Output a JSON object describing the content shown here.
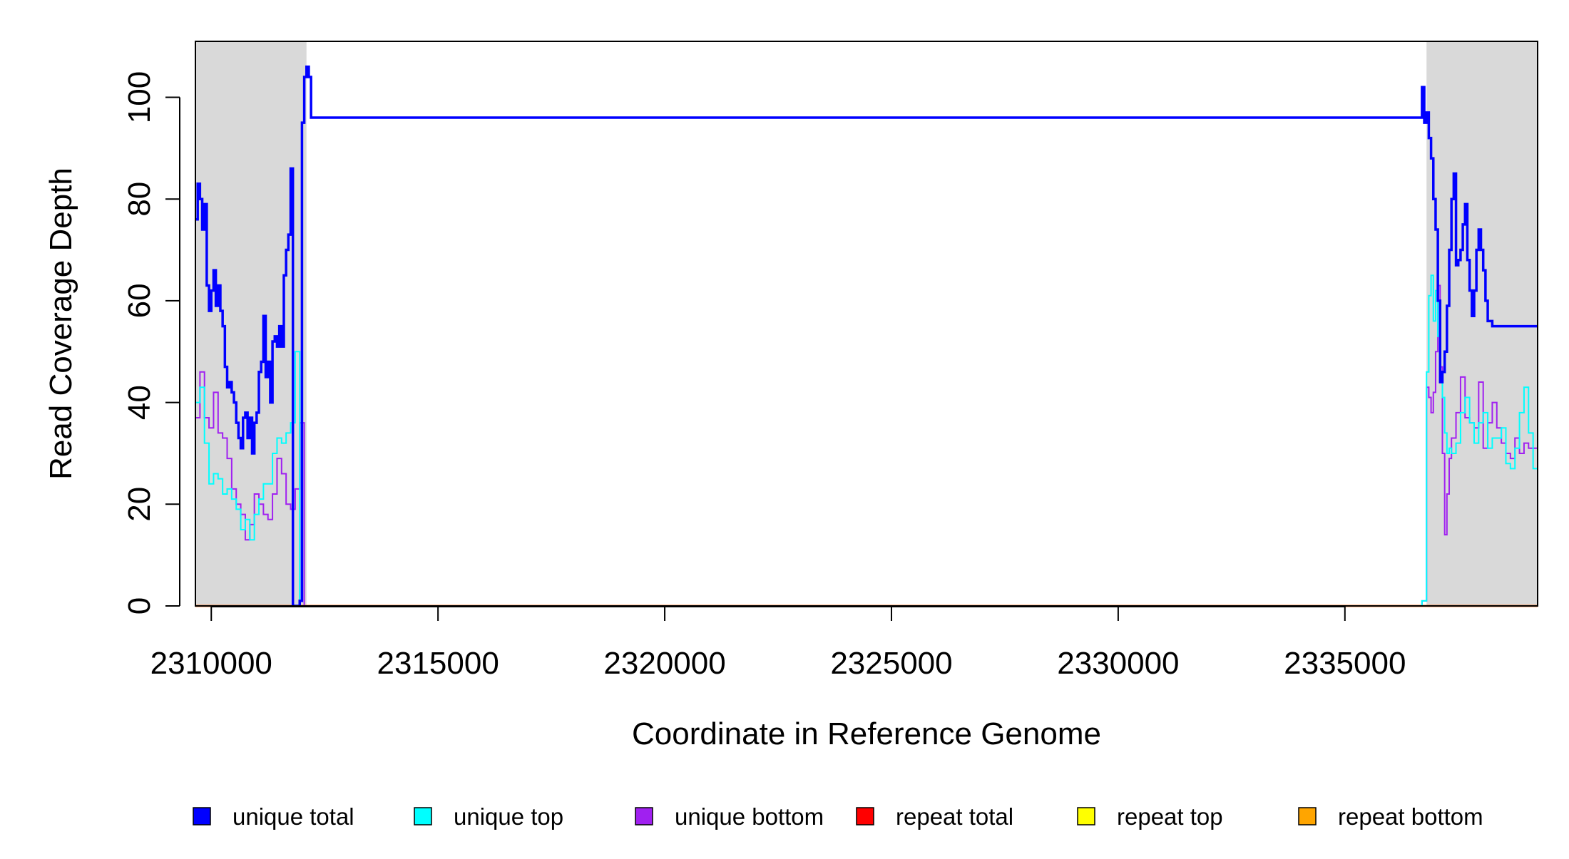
{
  "chart_data": {
    "type": "line",
    "xlabel": "Coordinate in Reference Genome",
    "ylabel": "Read Coverage Depth",
    "xlim": [
      2309650,
      2339250
    ],
    "ylim": [
      0,
      111
    ],
    "x_ticks": [
      2310000,
      2315000,
      2320000,
      2325000,
      2330000,
      2335000
    ],
    "x_tick_labels": [
      "2310000",
      "2315000",
      "2320000",
      "2325000",
      "2330000",
      "2335000"
    ],
    "y_ticks": [
      0,
      20,
      40,
      60,
      80,
      100
    ],
    "y_tick_labels": [
      "0",
      "20",
      "40",
      "60",
      "80",
      "100"
    ],
    "grid": false,
    "shaded_regions": [
      {
        "x0": 2309650,
        "x1": 2312100,
        "color": "#d9d9d9"
      },
      {
        "x0": 2336800,
        "x1": 2339250,
        "color": "#d9d9d9"
      }
    ],
    "legend": {
      "placement": "bottom",
      "entries": [
        {
          "label": "unique total",
          "color": "#0000ff"
        },
        {
          "label": "unique top",
          "color": "#00ffff"
        },
        {
          "label": "unique bottom",
          "color": "#a020f0"
        },
        {
          "label": "repeat total",
          "color": "#ff0000"
        },
        {
          "label": "repeat top",
          "color": "#ffff00"
        },
        {
          "label": "repeat bottom",
          "color": "#ffa500"
        }
      ]
    },
    "series": [
      {
        "name": "unique total",
        "color": "#0000ff",
        "x": [
          2309650,
          2309700,
          2309750,
          2309800,
          2309850,
          2309900,
          2309950,
          2310000,
          2310050,
          2310100,
          2310150,
          2310200,
          2310250,
          2310300,
          2310350,
          2310400,
          2310450,
          2310500,
          2310550,
          2310600,
          2310650,
          2310700,
          2310750,
          2310800,
          2310850,
          2310900,
          2310950,
          2311000,
          2311050,
          2311100,
          2311150,
          2311200,
          2311250,
          2311300,
          2311350,
          2311400,
          2311450,
          2311500,
          2311550,
          2311600,
          2311650,
          2311700,
          2311750,
          2311800,
          2311850,
          2311900,
          2311950,
          2312000,
          2312050,
          2312100,
          2312150,
          2312200,
          2336700,
          2336750,
          2336800,
          2336850,
          2336900,
          2336950,
          2337000,
          2337050,
          2337100,
          2337150,
          2337200,
          2337250,
          2337300,
          2337350,
          2337400,
          2337450,
          2337500,
          2337550,
          2337600,
          2337650,
          2337700,
          2337750,
          2337800,
          2337850,
          2337900,
          2337950,
          2338000,
          2338050,
          2338100,
          2338150,
          2338200,
          2338250,
          2338300,
          2338350,
          2338400,
          2338450,
          2338500,
          2338550,
          2338600,
          2338650,
          2338700,
          2338750,
          2338800,
          2338850,
          2338900,
          2338950,
          2339000,
          2339050,
          2339100,
          2339150,
          2339200,
          2339250
        ],
        "y": [
          76,
          83,
          80,
          74,
          79,
          63,
          58,
          62,
          66,
          59,
          63,
          58,
          55,
          47,
          43,
          44,
          42,
          40,
          36,
          33,
          31,
          37,
          38,
          33,
          37,
          30,
          36,
          38,
          46,
          48,
          57,
          45,
          48,
          40,
          52,
          53,
          51,
          55,
          51,
          65,
          70,
          73,
          86,
          0,
          0,
          0,
          1,
          95,
          104,
          106,
          104,
          96,
          102,
          95,
          97,
          92,
          88,
          80,
          74,
          60,
          44,
          46,
          50,
          59,
          70,
          80,
          85,
          67,
          68,
          70,
          75,
          79,
          68,
          62,
          57,
          62,
          70,
          74,
          70,
          66,
          60,
          56,
          56,
          55,
          55,
          55,
          55,
          55,
          55,
          55,
          55,
          55,
          55,
          55,
          55,
          55,
          55,
          55,
          55,
          55,
          55,
          55,
          55,
          55
        ],
        "note": ""
      },
      {
        "name": "unique top",
        "color": "#00ffff",
        "x": [
          2309650,
          2309750,
          2309850,
          2309950,
          2310050,
          2310150,
          2310250,
          2310350,
          2310450,
          2310550,
          2310650,
          2310750,
          2310850,
          2310950,
          2311050,
          2311150,
          2311250,
          2311350,
          2311450,
          2311550,
          2311650,
          2311750,
          2311850,
          2311950,
          2312050,
          2312100,
          2312150,
          2336700,
          2336800,
          2336850,
          2336900,
          2336950,
          2337000,
          2337050,
          2337100,
          2337150,
          2337200,
          2337250,
          2337300,
          2337350,
          2337450,
          2337550,
          2337650,
          2337750,
          2337850,
          2337950,
          2338050,
          2338150,
          2338250,
          2338350,
          2338450,
          2338550,
          2338650,
          2338750,
          2338850,
          2338950,
          2339050,
          2339150,
          2339250
        ],
        "y": [
          40,
          43,
          32,
          24,
          26,
          25,
          22,
          23,
          21,
          19,
          15,
          17,
          13,
          18,
          21,
          24,
          24,
          30,
          33,
          32,
          34,
          36,
          50,
          0,
          0,
          0,
          0,
          1,
          46,
          61,
          65,
          56,
          62,
          53,
          45,
          41,
          34,
          30,
          31,
          30,
          32,
          38,
          41,
          36,
          32,
          36,
          38,
          31,
          33,
          33,
          35,
          28,
          27,
          31,
          38,
          43,
          34,
          27,
          24
        ]
      },
      {
        "name": "unique bottom",
        "color": "#a020f0",
        "x": [
          2309650,
          2309750,
          2309850,
          2309950,
          2310050,
          2310150,
          2310250,
          2310350,
          2310450,
          2310550,
          2310650,
          2310750,
          2310850,
          2310950,
          2311050,
          2311150,
          2311250,
          2311350,
          2311450,
          2311550,
          2311650,
          2311750,
          2311850,
          2311950,
          2312050,
          2312100,
          2312150,
          2336700,
          2336800,
          2336850,
          2336900,
          2336950,
          2337000,
          2337050,
          2337100,
          2337150,
          2337200,
          2337250,
          2337300,
          2337350,
          2337450,
          2337550,
          2337650,
          2337750,
          2337850,
          2337950,
          2338050,
          2338150,
          2338250,
          2338350,
          2338450,
          2338550,
          2338650,
          2338750,
          2338850,
          2338950,
          2339050,
          2339150,
          2339250
        ],
        "y": [
          37,
          46,
          37,
          35,
          42,
          34,
          33,
          29,
          23,
          20,
          18,
          13,
          16,
          22,
          20,
          18,
          17,
          22,
          29,
          26,
          20,
          19,
          23,
          36,
          0,
          0,
          0,
          1,
          43,
          41,
          38,
          42,
          50,
          63,
          47,
          30,
          14,
          22,
          29,
          33,
          38,
          45,
          37,
          36,
          35,
          44,
          31,
          36,
          40,
          35,
          32,
          30,
          29,
          33,
          30,
          32,
          31,
          31,
          32
        ]
      },
      {
        "name": "repeat total",
        "color": "#ff0000",
        "x": [
          2309650,
          2339250
        ],
        "y": [
          0,
          0
        ]
      },
      {
        "name": "repeat top",
        "color": "#ffff00",
        "x": [
          2309650,
          2339250
        ],
        "y": [
          0,
          0
        ]
      },
      {
        "name": "repeat bottom",
        "color": "#ffa500",
        "x": [
          2309650,
          2339250
        ],
        "y": [
          0,
          0
        ]
      }
    ]
  }
}
